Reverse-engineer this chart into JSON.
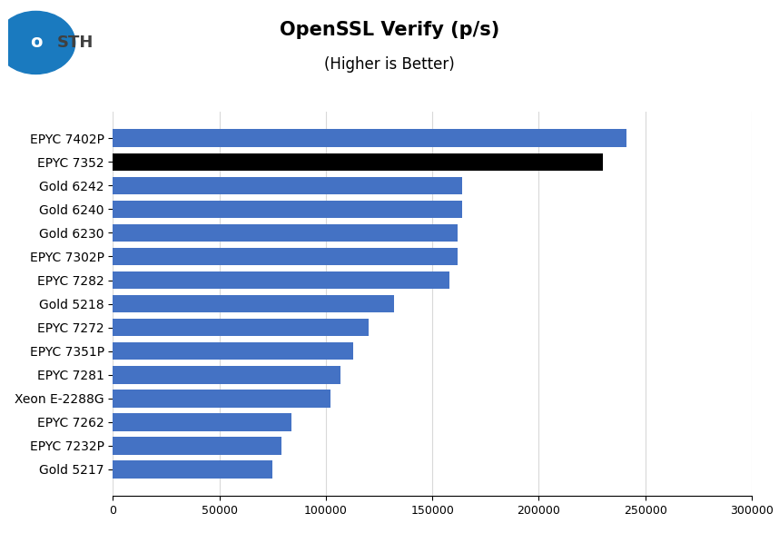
{
  "title": "OpenSSL Verify (p/s)",
  "subtitle": "(Higher is Better)",
  "categories": [
    "EPYC 7402P",
    "EPYC 7352",
    "Gold 6242",
    "Gold 6240",
    "Gold 6230",
    "EPYC 7302P",
    "EPYC 7282",
    "Gold 5218",
    "EPYC 7272",
    "EPYC 7351P",
    "EPYC 7281",
    "Xeon E-2288G",
    "EPYC 7262",
    "EPYC 7232P",
    "Gold 5217"
  ],
  "values": [
    241000,
    230000,
    164000,
    164000,
    162000,
    162000,
    158000,
    132000,
    120000,
    113000,
    107000,
    102000,
    84000,
    79000,
    75000
  ],
  "bar_colors": [
    "#4472C4",
    "#000000",
    "#4472C4",
    "#4472C4",
    "#4472C4",
    "#4472C4",
    "#4472C4",
    "#4472C4",
    "#4472C4",
    "#4472C4",
    "#4472C4",
    "#4472C4",
    "#4472C4",
    "#4472C4",
    "#4472C4"
  ],
  "xlim": [
    0,
    300000
  ],
  "xticks": [
    0,
    50000,
    100000,
    150000,
    200000,
    250000,
    300000
  ],
  "xtick_labels": [
    "0",
    "50000",
    "100000",
    "150000",
    "200000",
    "250000",
    "300000"
  ],
  "background_color": "#ffffff",
  "grid_color": "#d9d9d9",
  "title_fontsize": 15,
  "subtitle_fontsize": 12,
  "label_fontsize": 10,
  "tick_fontsize": 9,
  "bar_height": 0.75
}
